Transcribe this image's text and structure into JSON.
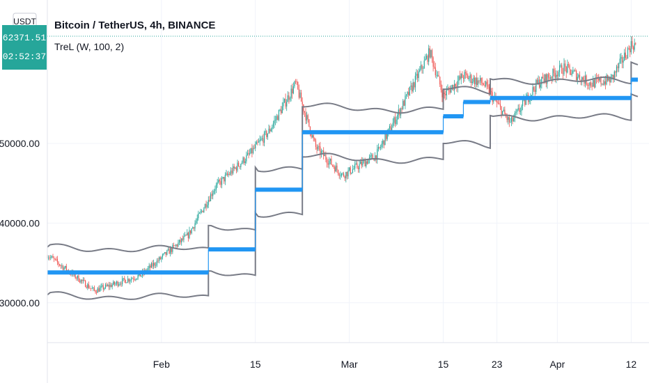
{
  "header": {
    "title": "Bitcoin / TetherUS, 4h, BINANCE",
    "indicator": "TreL (W, 100, 2)",
    "currency": "USDT"
  },
  "price_badge": {
    "price": "62371.51",
    "countdown": "02:52:37",
    "color": "#26a69a"
  },
  "colors": {
    "up": "#26a69a",
    "down": "#ef5350",
    "trend_line": "#2196f3",
    "band": "#787b86",
    "grid": "#f0f3fa"
  },
  "chart_data": {
    "type": "line",
    "title": "Bitcoin / TetherUS, 4h, BINANCE",
    "xlabel": "",
    "ylabel": "",
    "x_ticks": [
      "Feb",
      "15",
      "Mar",
      "15",
      "23",
      "Apr",
      "12"
    ],
    "y_ticks": [
      "30000.00",
      "40000.00",
      "50000.00"
    ],
    "ylim": [
      25000,
      68000
    ],
    "series": [
      {
        "name": "TreL (W, 100, 2)",
        "style": "step",
        "x": [
          "2021-01-15",
          "2021-02-08",
          "2021-02-15",
          "2021-02-22",
          "2021-03-15",
          "2021-03-18",
          "2021-03-22",
          "2021-04-12"
        ],
        "values": [
          33800,
          36700,
          44200,
          51400,
          53400,
          55200,
          55700,
          58000
        ]
      },
      {
        "name": "upper band",
        "x": [
          "2021-01-15",
          "2021-02-08",
          "2021-02-15",
          "2021-02-22",
          "2021-03-15",
          "2021-03-22",
          "2021-04-12"
        ],
        "values": [
          37000,
          39700,
          47000,
          54600,
          56800,
          58100,
          60200
        ]
      },
      {
        "name": "lower band",
        "x": [
          "2021-01-15",
          "2021-02-08",
          "2021-02-15",
          "2021-02-22",
          "2021-03-15",
          "2021-03-22",
          "2021-04-12"
        ],
        "values": [
          31000,
          34000,
          41300,
          48300,
          50000,
          53500,
          56200
        ]
      },
      {
        "name": "price",
        "style": "candles",
        "x": [
          "2021-01-15",
          "2021-01-22",
          "2021-01-29",
          "2021-02-05",
          "2021-02-09",
          "2021-02-14",
          "2021-02-17",
          "2021-02-21",
          "2021-02-24",
          "2021-02-28",
          "2021-03-05",
          "2021-03-10",
          "2021-03-13",
          "2021-03-15",
          "2021-03-18",
          "2021-03-21",
          "2021-03-25",
          "2021-03-29",
          "2021-04-02",
          "2021-04-06",
          "2021-04-09",
          "2021-04-12"
        ],
        "values": [
          36000,
          31500,
          33500,
          38500,
          44500,
          48500,
          51500,
          57500,
          49500,
          46000,
          48500,
          56500,
          61500,
          56000,
          58500,
          57500,
          52500,
          57500,
          59500,
          57500,
          58000,
          62371
        ]
      }
    ]
  }
}
